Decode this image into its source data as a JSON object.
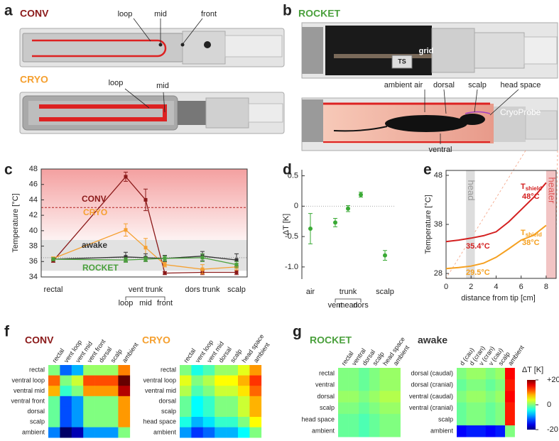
{
  "figure": {
    "panel_labels": [
      "a",
      "b",
      "c",
      "d",
      "e",
      "f",
      "g"
    ],
    "a": {
      "conv": "CONV",
      "conv_labels": [
        "loop",
        "mid",
        "front"
      ],
      "cryo": "CRYO",
      "cryo_labels": [
        "loop",
        "mid"
      ]
    },
    "b": {
      "rocket": "ROCKET",
      "grid": "grid",
      "ts": "TS",
      "labels": [
        "ambient air",
        "dorsal",
        "scalp",
        "head space"
      ],
      "cryoprobe": "CryoProbe",
      "ventral": "ventral"
    }
  },
  "chart_data": [
    {
      "type": "line",
      "ylabel": "Temperature [°C]",
      "categories": [
        "rectal",
        "loop",
        "mid",
        "front",
        "dors trunk",
        "scalp"
      ],
      "group_label": "vent trunk",
      "ylim": [
        34,
        48
      ],
      "yticks": [
        34,
        36,
        38,
        40,
        42,
        44,
        46,
        48
      ],
      "bands": [
        {
          "from": 38.8,
          "to": 48,
          "color": "#f08080"
        },
        {
          "from": 34.8,
          "to": 38.8,
          "color": "#e2e2e2"
        }
      ],
      "ref_lines": [
        {
          "value": 43,
          "color": "#b22222",
          "dash": "3,2"
        },
        {
          "value": 36.5,
          "color": "#888888",
          "dash": "1,2"
        }
      ],
      "series": [
        {
          "name": "CONV",
          "color": "#8b1a1a",
          "values": [
            36.1,
            47.0,
            44.0,
            34.5,
            34.6,
            34.6
          ],
          "errors": [
            0.2,
            0.6,
            1.4,
            0.2,
            0.3,
            0.3
          ]
        },
        {
          "name": "CRYO",
          "color": "#f5a030",
          "values": [
            36.4,
            40.1,
            37.8,
            35.6,
            35.0,
            35.3
          ],
          "errors": [
            0.2,
            0.8,
            1.2,
            0.3,
            0.6,
            0.4
          ]
        },
        {
          "name": "awake",
          "color": "#333333",
          "values": [
            36.3,
            36.6,
            36.5,
            36.4,
            36.7,
            36.2
          ],
          "errors": [
            0.2,
            0.6,
            0.5,
            0.4,
            0.6,
            0.8
          ]
        },
        {
          "name": "ROCKET",
          "color": "#4aa03c",
          "values": [
            36.3,
            36.2,
            36.3,
            36.4,
            36.5,
            35.6
          ],
          "errors": [
            0.2,
            0.3,
            0.3,
            0.3,
            0.5,
            0.4
          ]
        }
      ]
    },
    {
      "type": "scatter",
      "ylabel": "ΔT [K]",
      "categories": [
        "air",
        "vent",
        "mean",
        "dors",
        "scalp"
      ],
      "group_label": "trunk",
      "ylim": [
        -1.2,
        0.6
      ],
      "yticks": [
        {
          "value": -1.0,
          "label": "-1.0"
        },
        -0.5,
        0,
        0.5
      ],
      "zero_line": true,
      "color": "#3aaa35",
      "values": [
        -0.37,
        -0.27,
        -0.04,
        0.19,
        -0.81
      ],
      "errors": [
        0.25,
        0.07,
        0.05,
        0.04,
        0.08
      ]
    },
    {
      "type": "line",
      "xlabel": "distance from tip [cm]",
      "ylabel": "Temperature [°C]",
      "x": [
        0,
        1,
        2,
        3,
        4,
        5,
        6,
        7,
        8
      ],
      "xlim": [
        0,
        8.8
      ],
      "xticks": [
        0,
        2,
        4,
        6,
        8
      ],
      "ylim": [
        27,
        49
      ],
      "yticks": [
        28,
        38,
        48
      ],
      "bands": [
        {
          "label": "head",
          "from": 1.6,
          "to": 2.3,
          "color": "#dddddd"
        },
        {
          "label": "heater",
          "from": 8.0,
          "to": 8.8,
          "color": "#f2c4c4"
        }
      ],
      "series": [
        {
          "name": "T",
          "name_sub": "shield",
          "setpoint": "48°C",
          "color": "#d42020",
          "values": [
            34.5,
            34.8,
            35.2,
            35.7,
            36.5,
            38.5,
            41.0,
            43.5,
            46.5
          ],
          "annotation": "35.4°C"
        },
        {
          "name": "T",
          "name_sub": "shield",
          "setpoint": "38°C",
          "color": "#f5a020",
          "values": [
            29.0,
            29.2,
            29.5,
            30.1,
            31.3,
            33.0,
            34.8,
            35.8,
            37.8
          ],
          "annotation": "29.5°C"
        }
      ]
    },
    {
      "type": "heatmap",
      "title": "CONV",
      "title_color": "#8b1a1a",
      "clim": [
        -20,
        20
      ],
      "rows": [
        "rectal",
        "ventral loop",
        "ventral mid",
        "ventral front",
        "dorsal",
        "scalp",
        "ambient"
      ],
      "columns": [
        "rectal",
        "vent loop",
        "vent mid",
        "vent front",
        "dorsal",
        "scalp",
        "ambient"
      ],
      "values": [
        [
          0,
          -11,
          -8,
          1,
          1,
          1,
          10
        ],
        [
          11,
          0,
          3,
          12,
          12,
          12,
          21
        ],
        [
          8,
          -3,
          0,
          9,
          9,
          9,
          18
        ],
        [
          -1,
          -12,
          -9,
          0,
          0,
          0,
          9
        ],
        [
          -1,
          -12,
          -9,
          0,
          0,
          0,
          9
        ],
        [
          -1,
          -12,
          -9,
          0,
          0,
          0,
          9
        ],
        [
          -10,
          -21,
          -18,
          -9,
          -9,
          -9,
          0
        ]
      ]
    },
    {
      "type": "heatmap",
      "title": "CRYO",
      "title_color": "#f5a030",
      "clim": [
        -20,
        20
      ],
      "rows": [
        "rectal",
        "ventral loop",
        "ventral mid",
        "dorsal",
        "scalp",
        "head space",
        "ambient"
      ],
      "columns": [
        "rectal",
        "vent loop",
        "vent mid",
        "dorsal",
        "scalp",
        "head space",
        "ambient"
      ],
      "values": [
        [
          0,
          -4,
          -2,
          1,
          1,
          4,
          9
        ],
        [
          4,
          0,
          2,
          5,
          5,
          8,
          13
        ],
        [
          2,
          -2,
          0,
          3,
          3,
          6,
          11
        ],
        [
          -1,
          -5,
          -3,
          0,
          0,
          3,
          8
        ],
        [
          -1,
          -5,
          -3,
          0,
          0,
          3,
          8
        ],
        [
          -4,
          -8,
          -6,
          -3,
          -3,
          0,
          5
        ],
        [
          -9,
          -13,
          -11,
          -8,
          -8,
          -5,
          0
        ]
      ]
    },
    {
      "type": "heatmap",
      "title": "ROCKET",
      "title_color": "#4aa03c",
      "clim": [
        -20,
        20
      ],
      "rows": [
        "rectal",
        "ventral",
        "dorsal",
        "scalp",
        "head space",
        "ambient"
      ],
      "columns": [
        "rectal",
        "ventral",
        "dorsal",
        "scalp",
        "head space",
        "ambient"
      ],
      "values": [
        [
          0,
          0,
          -1,
          0,
          1,
          1
        ],
        [
          0,
          0,
          -1,
          0,
          1,
          1
        ],
        [
          1,
          1,
          0,
          1,
          2,
          2
        ],
        [
          0,
          0,
          -1,
          0,
          1,
          1
        ],
        [
          -1,
          -1,
          -2,
          -1,
          0,
          0
        ],
        [
          -1,
          -1,
          -2,
          -1,
          0,
          0
        ]
      ]
    },
    {
      "type": "heatmap",
      "title": "awake",
      "title_color": "#333333",
      "clim": [
        -20,
        20
      ],
      "rows": [
        "dorsal (caudal)",
        "dorsal (cranial)",
        "ventral (caudal)",
        "ventral (cranial)",
        "scalp",
        "ambient"
      ],
      "columns": [
        "d (cau)",
        "d (cran)",
        "v (cran)",
        "v (cau)",
        "scalp",
        "ambient"
      ],
      "values": [
        [
          0,
          1,
          1,
          0,
          1,
          15
        ],
        [
          -1,
          0,
          0,
          -1,
          0,
          14
        ],
        [
          0,
          1,
          1,
          0,
          1,
          15
        ],
        [
          -1,
          0,
          0,
          -1,
          0,
          14
        ],
        [
          -1,
          0,
          0,
          -1,
          0,
          14
        ],
        [
          -15,
          -14,
          -14,
          -15,
          -14,
          0
        ]
      ]
    },
    {
      "type": "colorbar",
      "title": "ΔT [K]",
      "clim": [
        -20,
        20
      ],
      "colormap": "jet",
      "ticks": [
        {
          "value": 20,
          "label": "+20"
        },
        0,
        -20
      ]
    }
  ]
}
